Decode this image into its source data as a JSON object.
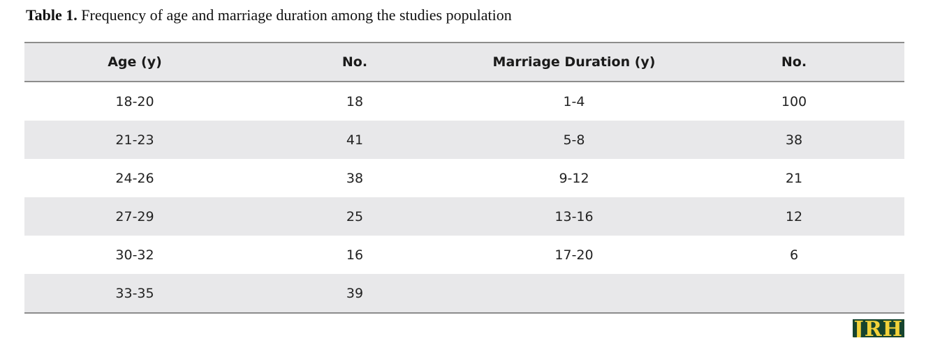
{
  "caption": {
    "label": "Table 1.",
    "text": "Frequency of age and marriage duration among the studies population"
  },
  "table": {
    "headers": [
      "Age (y)",
      "No.",
      "Marriage Duration (y)",
      "No."
    ],
    "rows": [
      [
        "18-20",
        "18",
        "1-4",
        "100"
      ],
      [
        "21-23",
        "41",
        "5-8",
        "38"
      ],
      [
        "24-26",
        "38",
        "9-12",
        "21"
      ],
      [
        "27-29",
        "25",
        "13-16",
        "12"
      ],
      [
        "30-32",
        "16",
        "17-20",
        "6"
      ],
      [
        "33-35",
        "39",
        "",
        ""
      ]
    ]
  },
  "logo": {
    "text": "JRH"
  }
}
